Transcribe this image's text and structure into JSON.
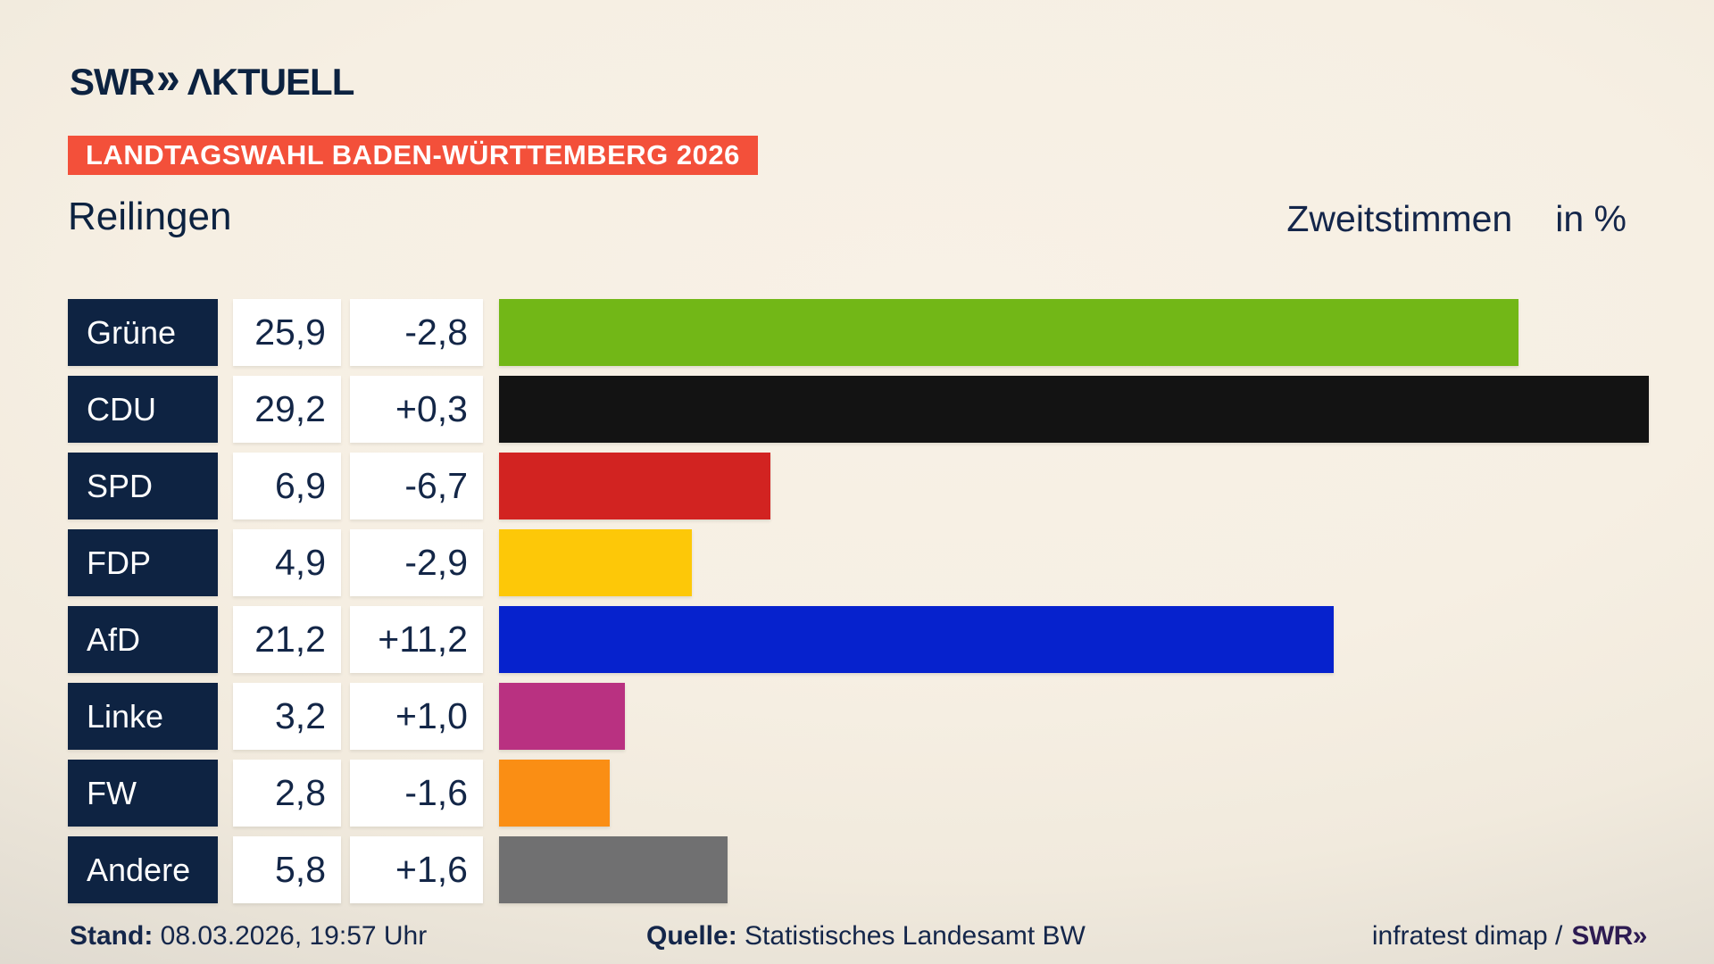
{
  "header": {
    "logo": {
      "brand": "SWR",
      "chevrons": "»",
      "product": "ΛKTUELL"
    },
    "banner": "LANDTAGSWAHL BADEN-WÜRTTEMBERG 2026"
  },
  "subhead": {
    "location": "Reilingen",
    "measure": "Zweitstimmen",
    "unit": "in %"
  },
  "chart_data": {
    "type": "bar",
    "orientation": "horizontal",
    "title": "Zweitstimmen in %",
    "subtitle": "Reilingen — Landtagswahl Baden-Württemberg 2026",
    "categories": [
      "Grüne",
      "CDU",
      "SPD",
      "FDP",
      "AfD",
      "Linke",
      "FW",
      "Andere"
    ],
    "values": [
      25.9,
      29.2,
      6.9,
      4.9,
      21.2,
      3.2,
      2.8,
      5.8
    ],
    "value_labels": [
      "25,9",
      "29,2",
      "6,9",
      "4,9",
      "21,2",
      "3,2",
      "2,8",
      "5,8"
    ],
    "change_labels": [
      "-2,8",
      "+0,3",
      "-6,7",
      "-2,9",
      "+11,2",
      "+1,0",
      "-1,6",
      "+1,6"
    ],
    "changes": [
      -2.8,
      0.3,
      -6.7,
      -2.9,
      11.2,
      1.0,
      -1.6,
      1.6
    ],
    "bar_colors": [
      "#72b717",
      "#131313",
      "#d22321",
      "#fdc808",
      "#0622cd",
      "#b93181",
      "#fa8e14",
      "#707071"
    ],
    "xlim": [
      0,
      30.8
    ],
    "grid": false,
    "legend": false
  },
  "footer": {
    "stand_label": "Stand:",
    "stand_value": "08.03.2026, 19:57 Uhr",
    "quelle_label": "Quelle:",
    "quelle_value": "Statistisches Landesamt BW",
    "credit_text": "infratest dimap /",
    "credit_brand": "SWR»"
  },
  "colors": {
    "navy_text": "#0c2240",
    "banner_red": "#f3503a",
    "party_box": "#0e2342",
    "value_box": "#ffffff",
    "value_text": "#132647",
    "credit_brand": "#2d1b52"
  }
}
